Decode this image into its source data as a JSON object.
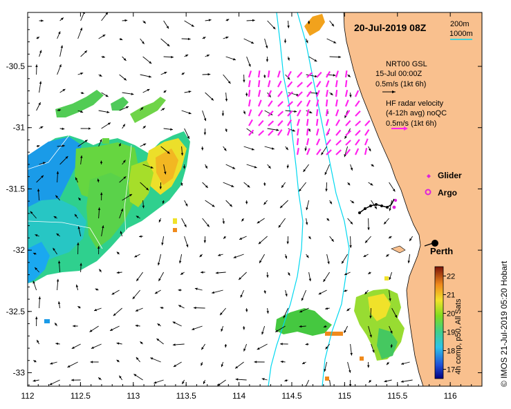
{
  "title": "20-Jul-2019 08Z",
  "depth_legend": {
    "contour_1": "200m",
    "contour_2": "1000m"
  },
  "glider_legend": {
    "line1": "NRT00 GSL",
    "line2": "15-Jul 00:00Z",
    "line3": "0.5m/s (1kt 6h)"
  },
  "radar_legend": {
    "line1": "HF radar velocity",
    "line2": "(4-12h avg) noQC",
    "line3": "0.5m/s (1kt 6h)"
  },
  "markers": {
    "glider": "Glider",
    "argo": "Argo"
  },
  "city": "Perth",
  "copyright": "© IMOS 21-Jul-2019 05:20 Hobart",
  "colorbar": {
    "label": "4h comp, p50, All Sats",
    "ticks": [
      "17",
      "18",
      "19",
      "20",
      "21",
      "22"
    ],
    "vmin": 16.5,
    "vmax": 22.5
  },
  "axes": {
    "x_ticks": [
      "112",
      "112.5",
      "113",
      "113.5",
      "114",
      "114.5",
      "115",
      "115.5",
      "116"
    ],
    "y_ticks": [
      "-30.5",
      "-31",
      "-31.5",
      "-32",
      "-32.5",
      "-33"
    ],
    "lon_range": [
      112,
      116.3
    ],
    "lat_range": [
      -30.06,
      -33.11
    ]
  },
  "colors": {
    "land": "#f9c08e",
    "bathymetry": "#00d8f0",
    "glider": "#000000",
    "radar": "#ff22ee",
    "argo": "#dd22dd"
  },
  "perth_location": {
    "lon": 115.86,
    "lat": -31.95
  }
}
